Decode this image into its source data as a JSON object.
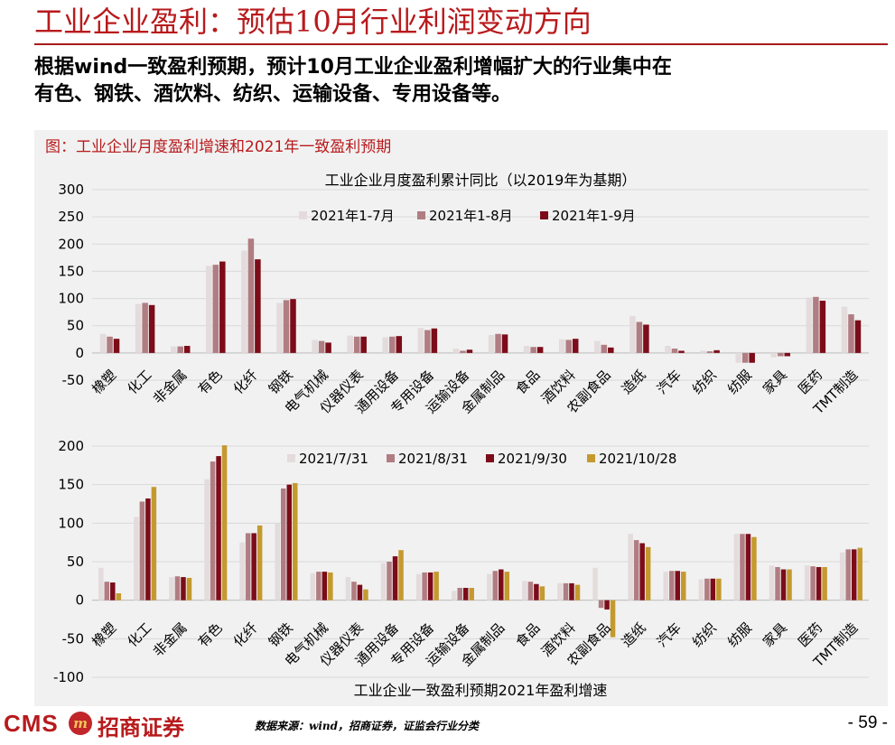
{
  "slide": {
    "title": "工业企业盈利：预估10月行业利润变动方向",
    "summary_line1": "根据wind一致盈利预期，预计10月工业企业盈利增幅扩大的行业集中在",
    "summary_line2": "有色、钢铁、酒饮料、纺织、运输设备、专用设备等。"
  },
  "figure": {
    "caption": "图：工业企业月度盈利增速和2021年一致盈利预期"
  },
  "footer": {
    "logo_cms": "CMS",
    "logo_mark": "m",
    "logo_name": "招商证券",
    "source": "数据来源：wind，招商证券，证监会行业分类",
    "page_number": "- 59 -"
  },
  "chart_data": [
    {
      "type": "bar",
      "title": "工业企业月度盈利累计同比（以2019年为基期）",
      "categories": [
        "橡塑",
        "化工",
        "非金属",
        "有色",
        "化纤",
        "钢铁",
        "电气机械",
        "仪器仪表",
        "通用设备",
        "专用设备",
        "运输设备",
        "金属制品",
        "食品",
        "酒饮料",
        "农副食品",
        "造纸",
        "汽车",
        "纺织",
        "纺服",
        "家具",
        "医药",
        "TMT制造"
      ],
      "ylim": [
        -50,
        300
      ],
      "yticks": [
        -50,
        0,
        50,
        100,
        150,
        200,
        250,
        300
      ],
      "grid": true,
      "legend_position": "top",
      "series": [
        {
          "name": "2021年1-7月",
          "color": "#e3dbdc",
          "values": [
            35,
            90,
            12,
            160,
            188,
            92,
            24,
            32,
            29,
            46,
            8,
            33,
            13,
            25,
            22,
            68,
            13,
            4,
            -18,
            -8,
            102,
            85
          ]
        },
        {
          "name": "2021年1-8月",
          "color": "#b07d82",
          "values": [
            30,
            92,
            12,
            162,
            210,
            97,
            22,
            30,
            30,
            42,
            4,
            35,
            11,
            24,
            15,
            57,
            8,
            3,
            -18,
            -6,
            103,
            71
          ]
        },
        {
          "name": "2021年1-9月",
          "color": "#7c0c19",
          "values": [
            26,
            88,
            13,
            168,
            172,
            99,
            19,
            30,
            31,
            45,
            6,
            34,
            11,
            26,
            10,
            52,
            4,
            5,
            -18,
            -6,
            96,
            60
          ]
        }
      ]
    },
    {
      "type": "bar",
      "title": "工业企业一致盈利预期2021年盈利增速",
      "categories": [
        "橡塑",
        "化工",
        "非金属",
        "有色",
        "化纤",
        "钢铁",
        "电气机械",
        "仪器仪表",
        "通用设备",
        "专用设备",
        "运输设备",
        "金属制品",
        "食品",
        "酒饮料",
        "农副食品",
        "造纸",
        "汽车",
        "纺织",
        "纺服",
        "家具",
        "医药",
        "TMT制造"
      ],
      "ylim": [
        -100,
        200
      ],
      "yticks": [
        -100,
        -50,
        0,
        50,
        100,
        150,
        200
      ],
      "grid": true,
      "legend_position": "top",
      "series": [
        {
          "name": "2021/7/31",
          "color": "#e3dbdc",
          "values": [
            42,
            108,
            30,
            157,
            75,
            100,
            35,
            30,
            48,
            34,
            12,
            34,
            25,
            22,
            42,
            86,
            37,
            27,
            86,
            45,
            45,
            62
          ]
        },
        {
          "name": "2021/8/31",
          "color": "#b07d82",
          "values": [
            24,
            128,
            31,
            180,
            87,
            145,
            37,
            24,
            50,
            36,
            16,
            38,
            24,
            22,
            -10,
            78,
            38,
            28,
            86,
            43,
            44,
            66
          ]
        },
        {
          "name": "2021/9/30",
          "color": "#7c0c19",
          "values": [
            23,
            132,
            30,
            187,
            87,
            150,
            37,
            20,
            57,
            36,
            16,
            40,
            21,
            22,
            -12,
            74,
            38,
            28,
            86,
            40,
            43,
            66
          ]
        },
        {
          "name": "2021/10/28",
          "color": "#c49a2f",
          "values": [
            9,
            147,
            29,
            201,
            97,
            152,
            36,
            14,
            65,
            37,
            16,
            37,
            18,
            20,
            -48,
            69,
            37,
            28,
            82,
            40,
            43,
            68
          ]
        }
      ]
    }
  ]
}
